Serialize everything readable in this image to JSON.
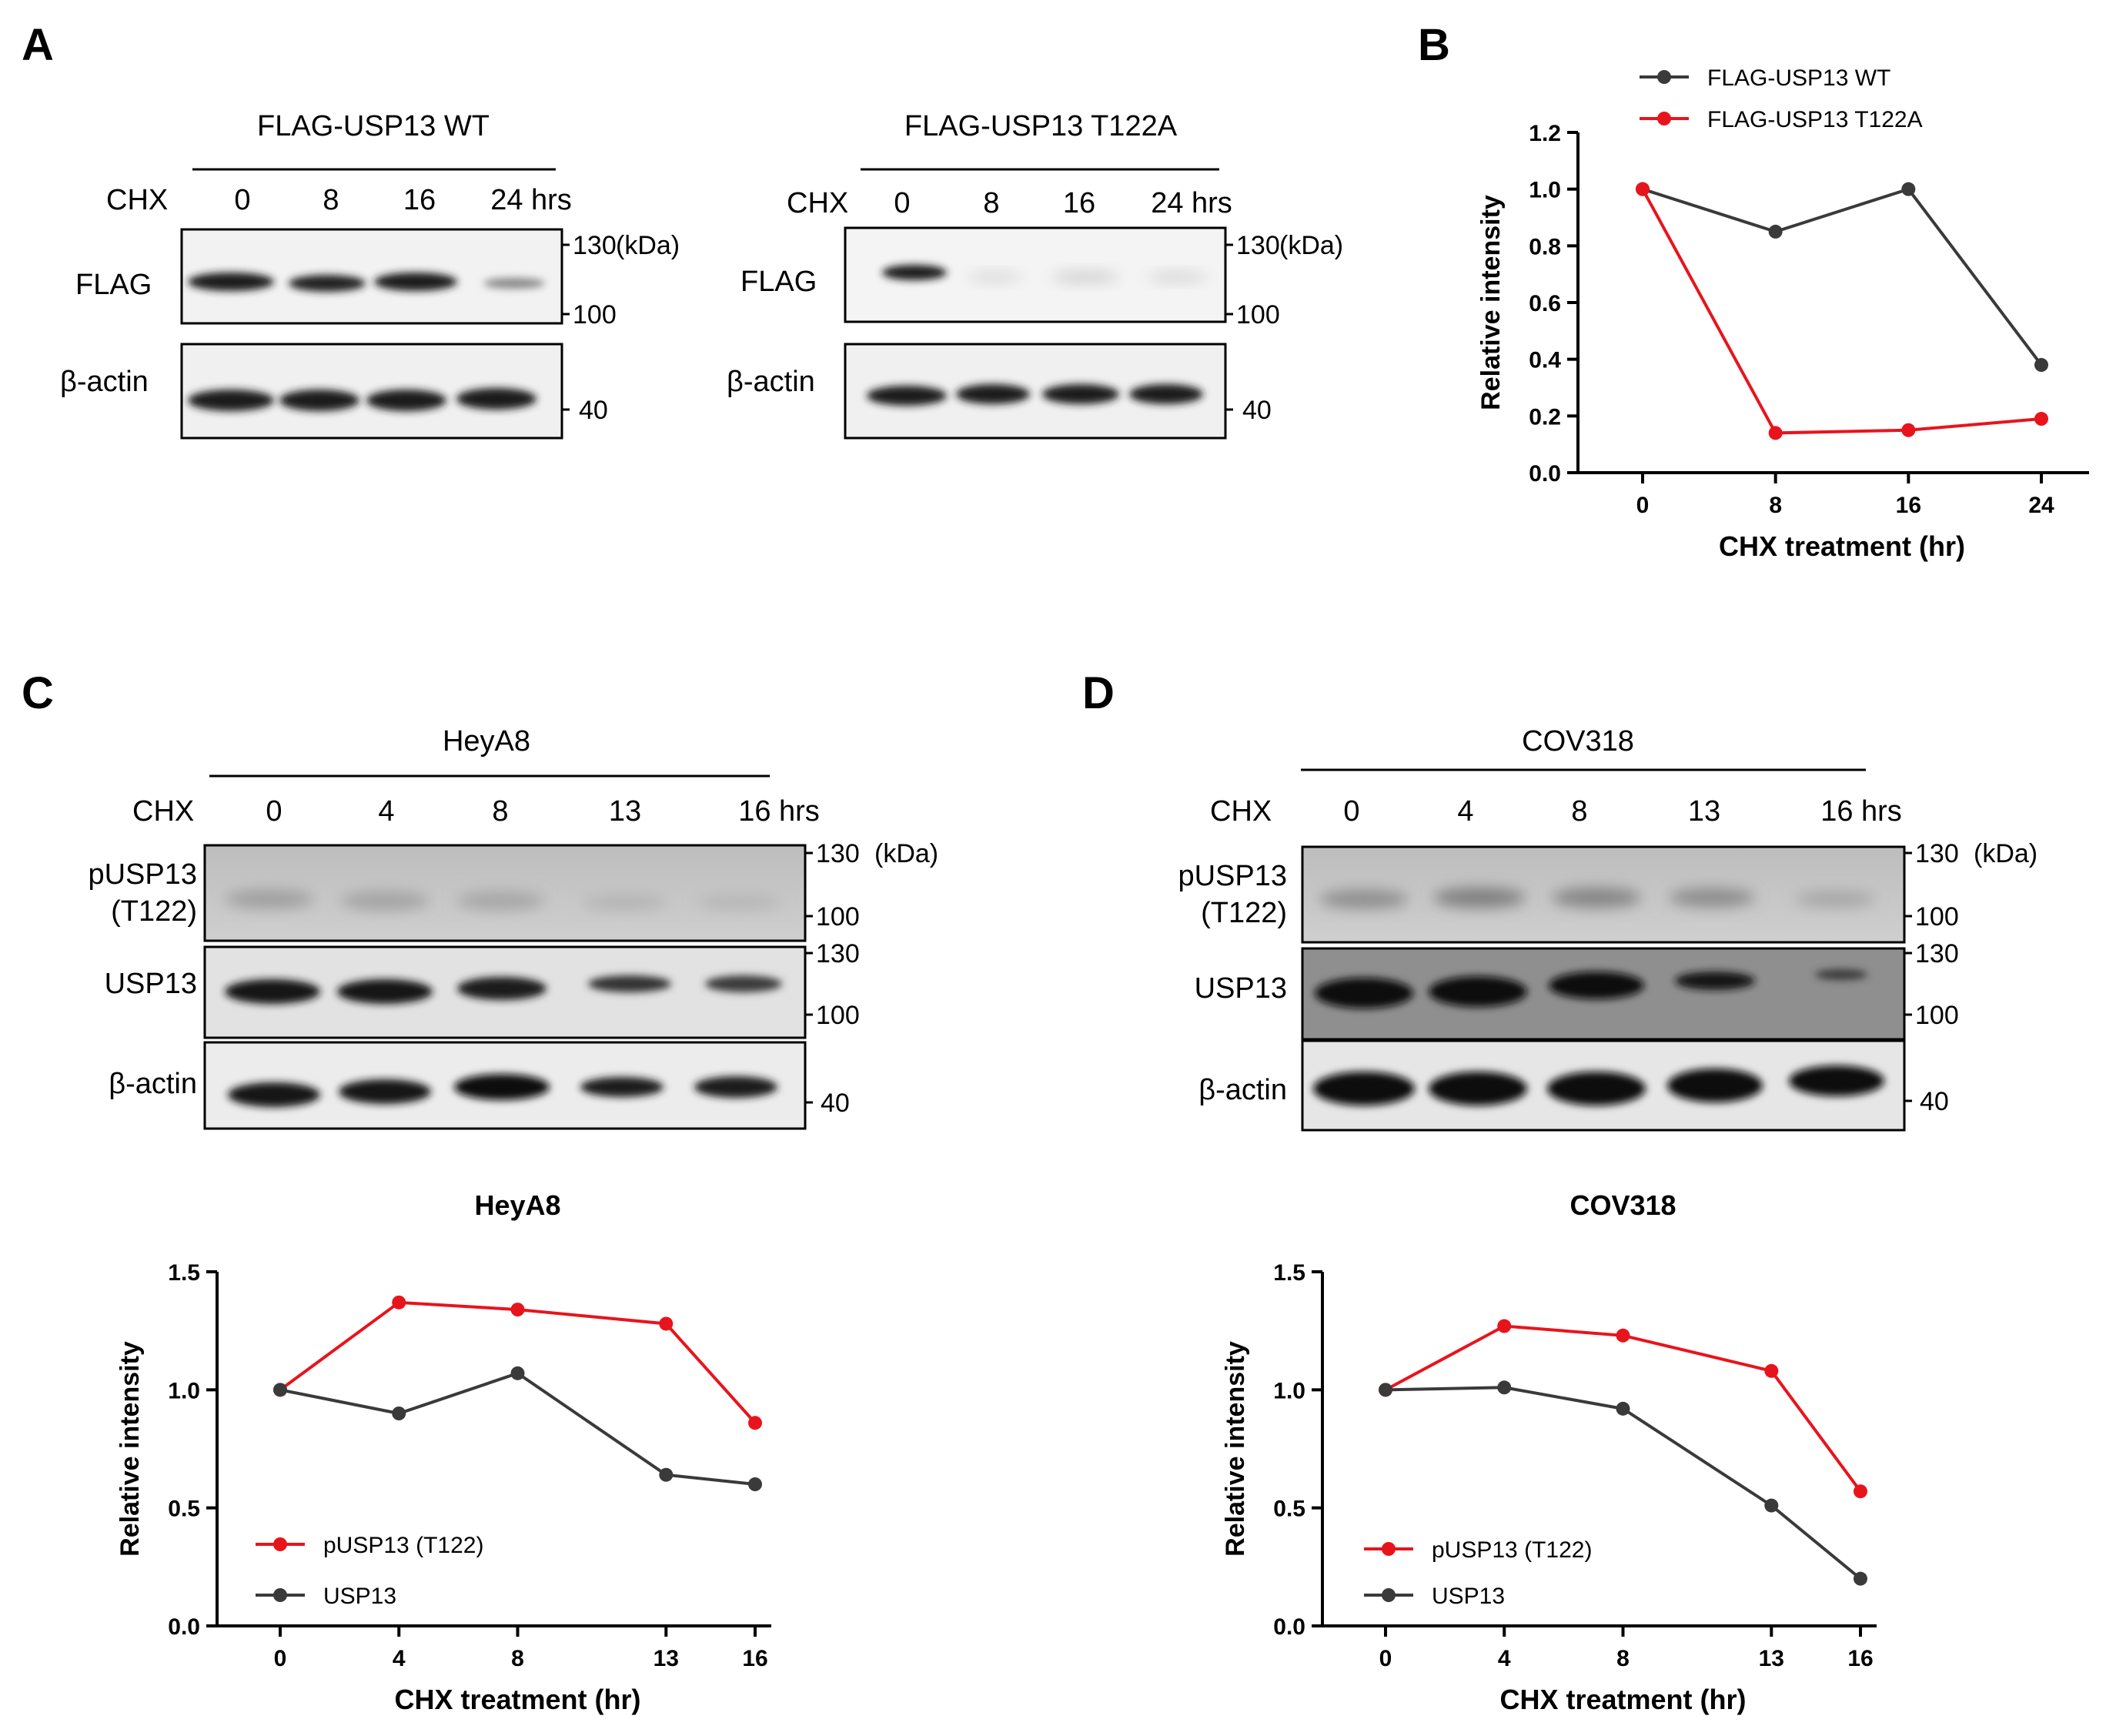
{
  "panels": {
    "A": {
      "letter": "A",
      "blots": [
        {
          "title": "FLAG-USP13 WT",
          "cond_label": "CHX",
          "lanes": [
            "0",
            "8",
            "16",
            "24 hrs"
          ],
          "rows": [
            {
              "label": "FLAG",
              "markers": [
                "130",
                "100"
              ],
              "intensities": [
                1.0,
                0.85,
                1.0,
                0.38
              ]
            },
            {
              "label": "β-actin",
              "markers": [
                "40"
              ],
              "intensities": [
                1,
                1,
                1,
                1
              ]
            }
          ],
          "kda_label": "(kDa)"
        },
        {
          "title": "FLAG-USP13 T122A",
          "cond_label": "CHX",
          "lanes": [
            "0",
            "8",
            "16",
            "24 hrs"
          ],
          "rows": [
            {
              "label": "FLAG",
              "markers": [
                "130",
                "100"
              ],
              "intensities": [
                1.0,
                0.14,
                0.15,
                0.19
              ]
            },
            {
              "label": "β-actin",
              "markers": [
                "40"
              ],
              "intensities": [
                1,
                1,
                1,
                1
              ]
            }
          ],
          "kda_label": "(kDa)"
        }
      ]
    },
    "B": {
      "letter": "B"
    },
    "C": {
      "letter": "C",
      "blot": {
        "title": "HeyA8",
        "cond_label": "CHX",
        "lanes": [
          "0",
          "4",
          "8",
          "13",
          "16 hrs"
        ],
        "rows": [
          {
            "label_lines": [
              "pUSP13",
              "(T122)"
            ],
            "markers": [
              "130",
              "100"
            ],
            "intensities": [
              1.0,
              1.37,
              1.34,
              1.28,
              0.86
            ]
          },
          {
            "label_lines": [
              "USP13"
            ],
            "markers": [
              "130",
              "100"
            ],
            "intensities": [
              1.0,
              0.9,
              1.07,
              0.64,
              0.6
            ]
          },
          {
            "label_lines": [
              "β-actin"
            ],
            "markers": [
              "40"
            ],
            "intensities": [
              1,
              1,
              1,
              1,
              1
            ]
          }
        ],
        "kda_label": "(kDa)"
      }
    },
    "D": {
      "letter": "D",
      "blot": {
        "title": "COV318",
        "cond_label": "CHX",
        "lanes": [
          "0",
          "4",
          "8",
          "13",
          "16 hrs"
        ],
        "rows": [
          {
            "label_lines": [
              "pUSP13",
              "(T122)"
            ],
            "markers": [
              "130",
              "100"
            ],
            "intensities": [
              1.0,
              1.27,
              1.23,
              1.08,
              0.57
            ]
          },
          {
            "label_lines": [
              "USP13"
            ],
            "markers": [
              "130",
              "100"
            ],
            "intensities": [
              1.0,
              1.01,
              0.92,
              0.51,
              0.2
            ]
          },
          {
            "label_lines": [
              "β-actin"
            ],
            "markers": [
              "40"
            ],
            "intensities": [
              1,
              1,
              1,
              1,
              1
            ]
          }
        ],
        "kda_label": "(kDa)"
      }
    }
  },
  "colors": {
    "red": "#e8141c",
    "dark": "#3a3a3a"
  },
  "chart_data": [
    {
      "id": "B",
      "type": "line",
      "title": "",
      "x": [
        0,
        8,
        16,
        24
      ],
      "xticks": [
        "0",
        "8",
        "16",
        "24"
      ],
      "xlabel": "CHX treatment (hr)",
      "ylabel": "Relative intensity",
      "ylim": [
        0,
        1.2
      ],
      "yticks": [
        "0.0",
        "0.2",
        "0.4",
        "0.6",
        "0.8",
        "1.0",
        "1.2"
      ],
      "legend": "top",
      "series": [
        {
          "name": "FLAG-USP13 WT",
          "color": "#3a3a3a",
          "values": [
            1.0,
            0.85,
            1.0,
            0.38
          ]
        },
        {
          "name": "FLAG-USP13 T122A",
          "color": "#e8141c",
          "values": [
            1.0,
            0.14,
            0.15,
            0.19
          ]
        }
      ]
    },
    {
      "id": "C",
      "type": "line",
      "title": "HeyA8",
      "x": [
        0,
        4,
        8,
        13,
        16
      ],
      "xticks": [
        "0",
        "4",
        "8",
        "13",
        "16"
      ],
      "xlabel": "CHX treatment (hr)",
      "ylabel": "Relative intensity",
      "ylim": [
        0,
        1.5
      ],
      "yticks": [
        "0.0",
        "0.5",
        "1.0",
        "1.5"
      ],
      "legend": "bottom-left",
      "series": [
        {
          "name": "pUSP13 (T122)",
          "color": "#e8141c",
          "values": [
            1.0,
            1.37,
            1.34,
            1.28,
            0.86
          ]
        },
        {
          "name": "USP13",
          "color": "#3a3a3a",
          "values": [
            1.0,
            0.9,
            1.07,
            0.64,
            0.6
          ]
        }
      ]
    },
    {
      "id": "D",
      "type": "line",
      "title": "COV318",
      "x": [
        0,
        4,
        8,
        13,
        16
      ],
      "xticks": [
        "0",
        "4",
        "8",
        "13",
        "16"
      ],
      "xlabel": "CHX treatment (hr)",
      "ylabel": "Relative intensity",
      "ylim": [
        0,
        1.5
      ],
      "yticks": [
        "0.0",
        "0.5",
        "1.0",
        "1.5"
      ],
      "legend": "bottom-left",
      "series": [
        {
          "name": "pUSP13 (T122)",
          "color": "#e8141c",
          "values": [
            1.0,
            1.27,
            1.23,
            1.08,
            0.57
          ]
        },
        {
          "name": "USP13",
          "color": "#3a3a3a",
          "values": [
            1.0,
            1.01,
            0.92,
            0.51,
            0.2
          ]
        }
      ]
    }
  ]
}
